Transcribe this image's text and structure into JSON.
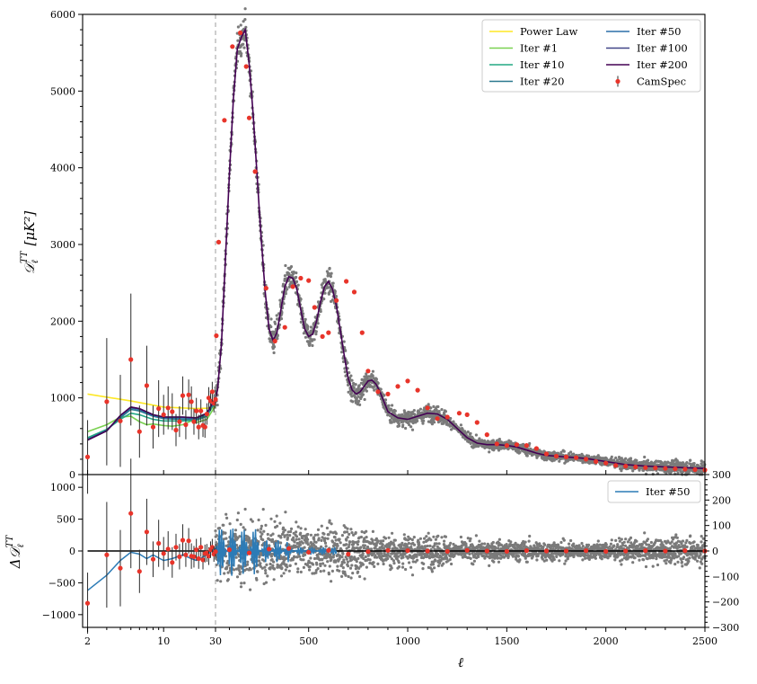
{
  "chart_data": [
    {
      "type": "line",
      "panel": "top",
      "ylabel": "𝒟ℓ^TT [μK²]",
      "ylabel_main": "𝒟",
      "ylabel_sub": "ℓ",
      "ylabel_sup": "TT",
      "ylabel_unit": "[μK²]",
      "xscale": "log below ℓ=30, linear above",
      "xlim": [
        1.8,
        2500
      ],
      "ylim": [
        0,
        6000
      ],
      "x_ticks": [
        2,
        10,
        30,
        500,
        1000,
        1500,
        2000,
        2500
      ],
      "x_tick_labels": [
        "",
        "",
        "",
        "",
        "",
        "",
        "",
        ""
      ],
      "y_ticks": [
        0,
        1000,
        2000,
        3000,
        4000,
        5000,
        6000
      ],
      "y_tick_labels": [
        "0",
        "1000",
        "2000",
        "3000",
        "4000",
        "5000",
        "6000"
      ],
      "vline_x": 30,
      "legend_position": "top-right",
      "legend_columns": 2,
      "series": [
        {
          "name": "Power Law",
          "color": "#fde725",
          "x": [
            2,
            5,
            10,
            20,
            30
          ],
          "y": [
            1050,
            960,
            880,
            860,
            870
          ]
        },
        {
          "name": "Iter #1",
          "color": "#7ad151",
          "x": [
            2,
            3,
            4,
            5,
            6,
            7,
            8,
            10,
            12,
            15,
            18,
            20,
            25,
            30
          ],
          "y": [
            560,
            650,
            750,
            760,
            690,
            650,
            660,
            640,
            630,
            650,
            700,
            680,
            720,
            900
          ]
        },
        {
          "name": "Iter #10",
          "color": "#22a884",
          "x": [
            2,
            3,
            4,
            5,
            6,
            8,
            10,
            15,
            20,
            25,
            30
          ],
          "y": [
            480,
            590,
            720,
            800,
            780,
            720,
            700,
            700,
            710,
            760,
            950
          ]
        },
        {
          "name": "Iter #20",
          "color": "#2a788e",
          "x": [
            2,
            3,
            4,
            5,
            6,
            8,
            10,
            15,
            20,
            25,
            30
          ],
          "y": [
            460,
            580,
            740,
            850,
            830,
            760,
            730,
            720,
            720,
            780,
            980
          ]
        },
        {
          "name": "Iter #50",
          "color": "#2c6fa8",
          "x": [
            2,
            3,
            4,
            5,
            6,
            8,
            10,
            15,
            20,
            25,
            30
          ],
          "y": [
            455,
            575,
            760,
            870,
            850,
            770,
            740,
            740,
            730,
            790,
            990
          ]
        },
        {
          "name": "Iter #100",
          "color": "#414487",
          "x": [
            2,
            3,
            4,
            5,
            6,
            8,
            10,
            15,
            20,
            25,
            30
          ],
          "y": [
            450,
            570,
            770,
            880,
            860,
            780,
            750,
            750,
            740,
            800,
            1000
          ]
        },
        {
          "name": "Iter #200",
          "color": "#440154",
          "x": [
            2,
            3,
            4,
            5,
            6,
            8,
            10,
            15,
            20,
            25,
            30,
            40,
            60,
            80,
            100,
            120,
            140,
            160,
            180,
            200,
            220,
            240,
            260,
            280,
            300,
            320,
            340,
            360,
            380,
            400,
            420,
            440,
            460,
            480,
            500,
            520,
            540,
            560,
            580,
            600,
            620,
            640,
            660,
            680,
            700,
            720,
            740,
            760,
            780,
            800,
            820,
            840,
            860,
            880,
            900,
            950,
            1000,
            1050,
            1100,
            1150,
            1200,
            1250,
            1300,
            1350,
            1400,
            1450,
            1500,
            1550,
            1600,
            1650,
            1700,
            1750,
            1800,
            1850,
            1900,
            2000,
            2100,
            2200,
            2300,
            2400,
            2500
          ],
          "y": [
            450,
            570,
            770,
            880,
            860,
            780,
            750,
            750,
            740,
            800,
            1000,
            1100,
            1700,
            2800,
            3900,
            4900,
            5550,
            5700,
            5800,
            5350,
            4700,
            3900,
            3100,
            2400,
            1900,
            1750,
            1850,
            2150,
            2450,
            2580,
            2560,
            2420,
            2150,
            1900,
            1800,
            1830,
            2000,
            2250,
            2450,
            2520,
            2420,
            2200,
            1880,
            1550,
            1250,
            1100,
            1050,
            1080,
            1150,
            1220,
            1230,
            1180,
            1080,
            950,
            820,
            740,
            720,
            760,
            800,
            790,
            720,
            600,
            480,
            410,
            390,
            390,
            380,
            360,
            320,
            280,
            250,
            240,
            230,
            220,
            210,
            170,
            130,
            110,
            100,
            90,
            80
          ]
        }
      ],
      "camspec": {
        "name": "CamSpec",
        "color": "#e8342a",
        "x": [
          2,
          3,
          4,
          5,
          6,
          7,
          8,
          9,
          10,
          11,
          12,
          13,
          14,
          15,
          16,
          17,
          18,
          19,
          20,
          21,
          22,
          23,
          24,
          25,
          26,
          27,
          28,
          29,
          30,
          34,
          46,
          75,
          115,
          155,
          185,
          200,
          230,
          285,
          330,
          380,
          420,
          460,
          500,
          530,
          570,
          600,
          640,
          690,
          730,
          770,
          800,
          850,
          900,
          950,
          1000,
          1050,
          1100,
          1150,
          1200,
          1260,
          1300,
          1350,
          1400,
          1450,
          1500,
          1550,
          1600,
          1650,
          1700,
          1750,
          1800,
          1850,
          1900,
          1950,
          2000,
          2050,
          2100,
          2150,
          2200,
          2250,
          2300,
          2350,
          2400,
          2450,
          2500
        ],
        "y": [
          230,
          950,
          700,
          1500,
          560,
          1160,
          620,
          860,
          780,
          870,
          820,
          580,
          690,
          1030,
          650,
          1040,
          950,
          690,
          830,
          620,
          830,
          640,
          620,
          790,
          1000,
          960,
          1080,
          930,
          980,
          1810,
          3030,
          4620,
          5580,
          5760,
          5320,
          4650,
          3950,
          2430,
          1740,
          1920,
          2450,
          2560,
          2530,
          2180,
          1800,
          1850,
          2270,
          2520,
          2380,
          1850,
          1350,
          1080,
          1050,
          1150,
          1220,
          1100,
          870,
          730,
          750,
          800,
          780,
          680,
          520,
          400,
          380,
          390,
          380,
          340,
          270,
          240,
          230,
          220,
          200,
          170,
          150,
          120,
          110,
          100,
          90,
          85,
          80,
          75,
          70,
          65,
          60
        ],
        "err": [
          480,
          830,
          600,
          860,
          340,
          520,
          280,
          370,
          260,
          280,
          240,
          210,
          200,
          250,
          190,
          200,
          200,
          170,
          170,
          160,
          150,
          150,
          140,
          140,
          140,
          130,
          130,
          120,
          120,
          0,
          0,
          0,
          0,
          0,
          0,
          0,
          0,
          0,
          0,
          0,
          0,
          0,
          0,
          0,
          0,
          0,
          0,
          0,
          0,
          0,
          0,
          0,
          0,
          0,
          0,
          0,
          0,
          0,
          0,
          0,
          0,
          0,
          0,
          0,
          0,
          0,
          0,
          0,
          0,
          0,
          0,
          0,
          0,
          0,
          0,
          0,
          0,
          0,
          0,
          0,
          0,
          0,
          0,
          0,
          0
        ]
      }
    },
    {
      "type": "line",
      "panel": "bottom",
      "ylabel": "Δ𝒟ℓ^TT",
      "ylabel_main": "Δ𝒟",
      "ylabel_sub": "ℓ",
      "ylabel_sup": "TT",
      "xlabel": "ℓ",
      "xscale": "log below ℓ=30, linear above",
      "xlim": [
        1.8,
        2500
      ],
      "ylim_left": [
        -1200,
        1200
      ],
      "ylim_right": [
        -300,
        300
      ],
      "x_ticks": [
        2,
        10,
        30,
        500,
        1000,
        1500,
        2000,
        2500
      ],
      "x_tick_labels": [
        "2",
        "10",
        "30",
        "500",
        "1000",
        "1500",
        "2000",
        "2500"
      ],
      "y_ticks_left": [
        -1000,
        -500,
        0,
        500,
        1000
      ],
      "y_tick_labels_left": [
        "−1000",
        "−500",
        "0",
        "500",
        "1000"
      ],
      "y_ticks_right": [
        -300,
        -200,
        -100,
        0,
        100,
        200,
        300
      ],
      "y_tick_labels_right": [
        "−300",
        "−200",
        "−100",
        "0",
        "100",
        "200",
        "300"
      ],
      "vline_x": 30,
      "legend_position": "top-right",
      "series": [
        {
          "name": "Iter #50",
          "color": "#2c7bb6",
          "x": [
            2,
            3,
            4,
            5,
            6,
            7,
            8,
            10,
            12,
            15,
            18,
            20,
            25,
            30
          ],
          "y": [
            -620,
            -380,
            -150,
            -20,
            -50,
            -120,
            -60,
            -150,
            -120,
            -60,
            -120,
            -150,
            -60,
            40
          ]
        }
      ],
      "camspec": {
        "name": "CamSpec",
        "color": "#e8342a",
        "x": [
          2,
          3,
          4,
          5,
          6,
          7,
          8,
          9,
          10,
          11,
          12,
          13,
          14,
          15,
          16,
          17,
          18,
          19,
          20,
          21,
          22,
          23,
          24,
          25,
          26,
          27,
          28,
          29,
          30,
          100,
          200,
          300,
          400,
          500,
          600,
          700,
          800,
          900,
          1000,
          1100,
          1200,
          1300,
          1400,
          1500,
          1600,
          1700,
          1800,
          1900,
          2000,
          2100,
          2200,
          2300,
          2400,
          2500
        ],
        "y": [
          -820,
          -60,
          -270,
          590,
          -320,
          300,
          -130,
          120,
          -40,
          30,
          -180,
          60,
          -90,
          170,
          -60,
          160,
          -80,
          -90,
          20,
          -120,
          60,
          -140,
          -40,
          -30,
          -80,
          20,
          60,
          -50,
          -10,
          20,
          -30,
          30,
          40,
          -20,
          10,
          -50,
          -10,
          10,
          5,
          0,
          -5,
          10,
          0,
          -5,
          5,
          0,
          0,
          5,
          -5,
          0,
          5,
          0,
          5,
          0
        ],
        "err": [
          480,
          830,
          600,
          860,
          340,
          520,
          280,
          370,
          260,
          280,
          240,
          210,
          200,
          250,
          190,
          200,
          200,
          170,
          170,
          160,
          150,
          150,
          140,
          140,
          140,
          130,
          130,
          120,
          120,
          0,
          0,
          0,
          0,
          0,
          0,
          0,
          0,
          0,
          0,
          0,
          0,
          0,
          0,
          0,
          0,
          0,
          0,
          0,
          0,
          0,
          0,
          0,
          0,
          0
        ]
      }
    }
  ]
}
